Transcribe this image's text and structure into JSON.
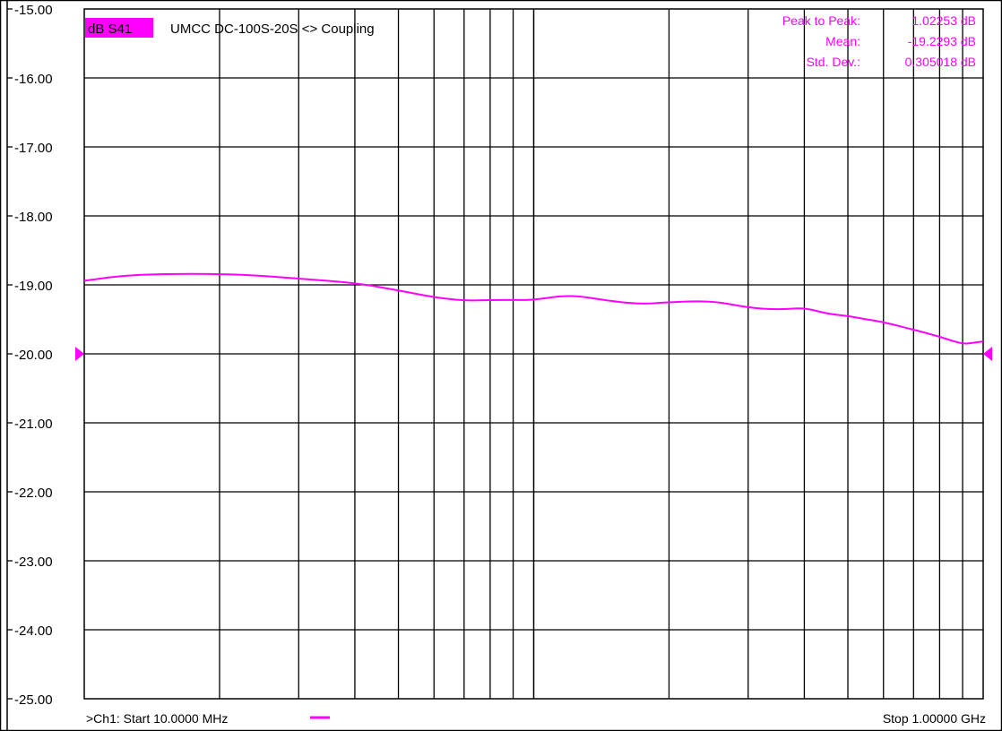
{
  "colors": {
    "trace": "#ff00ff",
    "grid": "#000000",
    "background": "#ffffff"
  },
  "header": {
    "trace_label": "dB S41",
    "title": "UMCC  DC-100S-20S <> Coupling"
  },
  "stats": {
    "peak_to_peak_label": "Peak to Peak:",
    "peak_to_peak_value": "1.02253 dB",
    "mean_label": "Mean:",
    "mean_value": "-19.2293 dB",
    "std_dev_label": "Std. Dev.:",
    "std_dev_value": "0.305018 dB"
  },
  "footer": {
    "start_text": ">Ch1: Start  10.0000 MHz",
    "stop_text": "Stop  1.00000 GHz"
  },
  "chart_data": {
    "type": "line",
    "title": "UMCC  DC-100S-20S <> Coupling",
    "xlabel": "",
    "ylabel": "",
    "x_scale": "log",
    "x_unit": "MHz",
    "xlim": [
      10,
      1000
    ],
    "ylim": [
      -25,
      -15
    ],
    "y_ticks": [
      "-15.00",
      "-16.00",
      "-17.00",
      "-18.00",
      "-19.00",
      "-20.00",
      "-21.00",
      "-22.00",
      "-23.00",
      "-24.00",
      "-25.00"
    ],
    "reference_level": -20.0,
    "grid": true,
    "series": [
      {
        "name": "dB S41",
        "x": [
          10,
          12,
          15,
          20,
          25,
          30,
          40,
          50,
          60,
          70,
          80,
          90,
          100,
          120,
          150,
          175,
          200,
          250,
          300,
          350,
          400,
          450,
          500,
          550,
          600,
          700,
          800,
          900,
          950,
          1000
        ],
        "values": [
          -18.94,
          -18.87,
          -18.84,
          -18.84,
          -18.87,
          -18.91,
          -18.97,
          -19.08,
          -19.18,
          -19.23,
          -19.22,
          -19.22,
          -19.22,
          -19.14,
          -19.24,
          -19.28,
          -19.25,
          -19.23,
          -19.33,
          -19.36,
          -19.33,
          -19.42,
          -19.45,
          -19.5,
          -19.54,
          -19.65,
          -19.75,
          -19.86,
          -19.84,
          -19.82
        ]
      }
    ]
  }
}
